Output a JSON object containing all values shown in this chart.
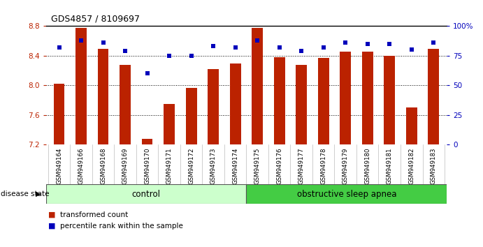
{
  "title": "GDS4857 / 8109697",
  "samples": [
    "GSM949164",
    "GSM949166",
    "GSM949168",
    "GSM949169",
    "GSM949170",
    "GSM949171",
    "GSM949172",
    "GSM949173",
    "GSM949174",
    "GSM949175",
    "GSM949176",
    "GSM949177",
    "GSM949178",
    "GSM949179",
    "GSM949180",
    "GSM949181",
    "GSM949182",
    "GSM949183"
  ],
  "red_values": [
    8.02,
    8.77,
    8.49,
    8.27,
    7.28,
    7.75,
    7.96,
    8.22,
    8.29,
    8.77,
    8.38,
    8.27,
    8.37,
    8.45,
    8.45,
    8.4,
    7.7,
    8.49
  ],
  "blue_percentiles": [
    82,
    88,
    86,
    79,
    60,
    75,
    75,
    83,
    82,
    88,
    82,
    79,
    82,
    86,
    85,
    85,
    80,
    86
  ],
  "ymin": 7.2,
  "ymax": 8.8,
  "yticks_left": [
    7.2,
    7.6,
    8.0,
    8.4,
    8.8
  ],
  "ytick_labels_left": [
    "7.2",
    "7.6",
    "8.0",
    "8.4",
    "8.8"
  ],
  "yticks_right": [
    0,
    25,
    50,
    75,
    100
  ],
  "ytick_labels_right": [
    "0",
    "25",
    "50",
    "75",
    "100%"
  ],
  "grid_lines_at": [
    7.6,
    8.0,
    8.4
  ],
  "bar_color": "#bb2200",
  "dot_color": "#0000bb",
  "control_color": "#ccffcc",
  "apnea_color": "#44cc44",
  "control_label": "control",
  "apnea_label": "obstructive sleep apnea",
  "legend_bar_label": "transformed count",
  "legend_dot_label": "percentile rank within the sample",
  "disease_state_label": "disease state",
  "n_control": 9,
  "n_total": 18,
  "xticklabel_bg": "#c8c8c8",
  "bar_width": 0.5
}
